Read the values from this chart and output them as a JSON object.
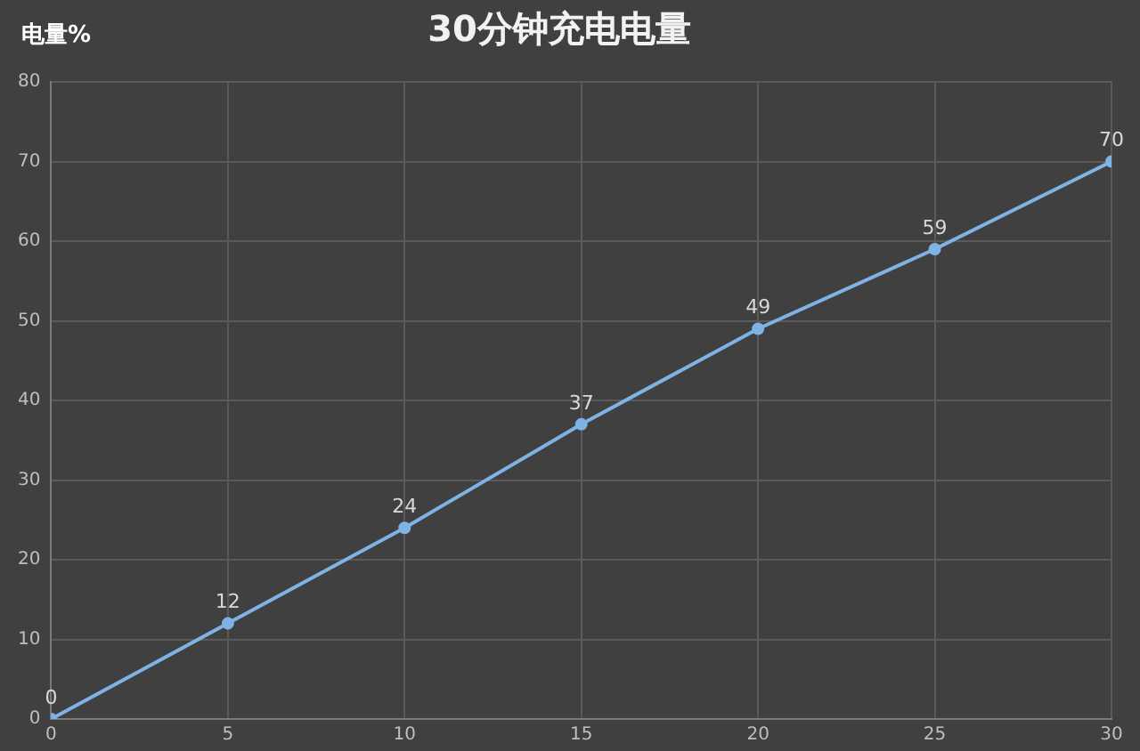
{
  "chart_data": {
    "type": "line",
    "title": "30分钟充电电量",
    "ylabel": "电量%",
    "x": [
      0,
      5,
      10,
      15,
      20,
      25,
      30
    ],
    "series": [
      {
        "color": "#7fb2e5",
        "values": [
          0,
          12,
          24,
          37,
          49,
          59,
          70
        ]
      }
    ],
    "xlim": [
      0,
      30
    ],
    "xticks": [
      0,
      5,
      10,
      15,
      20,
      25,
      30
    ],
    "ylim": [
      0,
      80
    ],
    "yticks": [
      0,
      10,
      20,
      30,
      40,
      50,
      60,
      70,
      80
    ],
    "grid": true,
    "legend": false,
    "marker": "circle",
    "line_style": "solid",
    "data_labels": true
  }
}
